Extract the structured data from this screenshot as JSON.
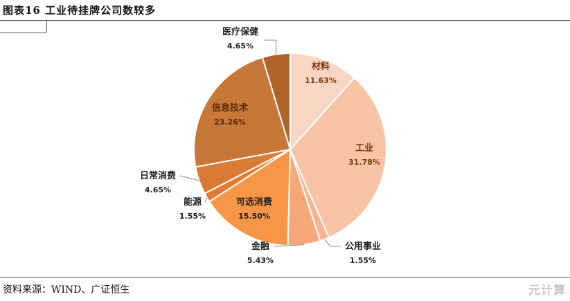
{
  "header": {
    "title": "图表16 工业待挂牌公司数较多"
  },
  "footer": {
    "source": "资料来源：WIND、广证恒生",
    "watermark": "元计算"
  },
  "chart_data": {
    "type": "pie",
    "title": "",
    "slices": [
      {
        "label": "材料",
        "value": 11.63,
        "pct": "11.63%",
        "color": "#f9d6c4",
        "text_color": "#7a3a12"
      },
      {
        "label": "工业",
        "value": 31.78,
        "pct": "31.78%",
        "color": "#f7c4a6",
        "text_color": "#7a3a12"
      },
      {
        "label": "公用事业",
        "value": 1.55,
        "pct": "1.55%",
        "color": "#f5b594",
        "text_color": "#222222"
      },
      {
        "label": "金融",
        "value": 5.43,
        "pct": "5.43%",
        "color": "#f5a878",
        "text_color": "#222222"
      },
      {
        "label": "可选消费",
        "value": 15.5,
        "pct": "15.50%",
        "color": "#f79646",
        "text_color": "#222222"
      },
      {
        "label": "能源",
        "value": 1.55,
        "pct": "1.55%",
        "color": "#e07d33",
        "text_color": "#222222"
      },
      {
        "label": "日常消费",
        "value": 4.65,
        "pct": "4.65%",
        "color": "#d97b35",
        "text_color": "#222222"
      },
      {
        "label": "信息技术",
        "value": 23.26,
        "pct": "23.26%",
        "color": "#c77738",
        "text_color": "#5a2a08"
      },
      {
        "label": "医疗保健",
        "value": 4.65,
        "pct": "4.65%",
        "color": "#b0642a",
        "text_color": "#222222"
      }
    ]
  }
}
